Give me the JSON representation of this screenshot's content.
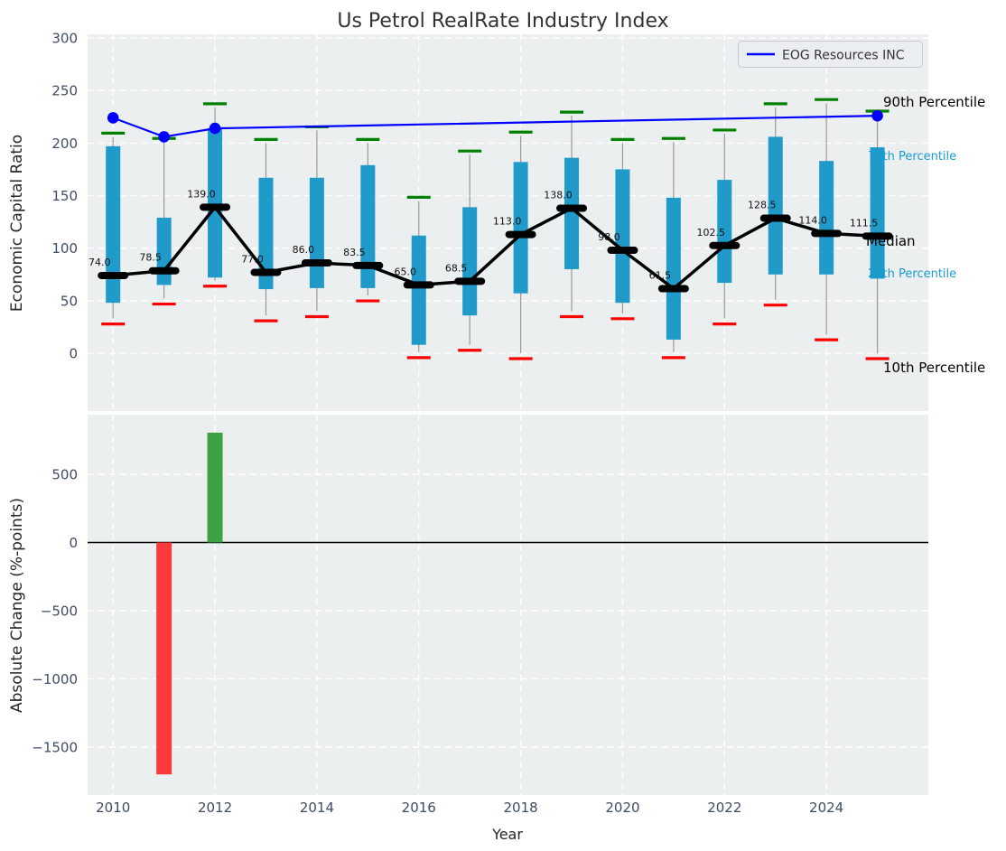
{
  "title": "Us Petrol RealRate Industry Index",
  "colors": {
    "axes_bg": "#ebeff0",
    "grid": "#ffffff",
    "box_fill": "#1f9ac9",
    "whisker": "#999999",
    "p90_cap": "#008000",
    "p10_cap": "#ff0000",
    "median": "#000000",
    "eog_line": "#0000ff",
    "bar_up": "#3ea144",
    "bar_down": "#fb3b3b",
    "tick_label": "#3e4d63",
    "axis_label": "#262626",
    "title_color": "#333333"
  },
  "chart_data": [
    {
      "type": "boxplot+line",
      "panel": "top",
      "title": "Us Petrol RealRate Industry Index",
      "ylabel": "Economic Capital Ratio",
      "ylim": [
        -55,
        303.5
      ],
      "yticks": [
        {
          "v": 0,
          "label": "0"
        },
        {
          "v": 50,
          "label": "50"
        },
        {
          "v": 100,
          "label": "100"
        },
        {
          "v": 150,
          "label": "150"
        },
        {
          "v": 200,
          "label": "200"
        },
        {
          "v": 250,
          "label": "250"
        },
        {
          "v": 300,
          "label": "300"
        }
      ],
      "grid": true,
      "legend": {
        "label": "EOG Resources INC",
        "position": "upper right"
      },
      "boxes": [
        {
          "year": 2010,
          "p10": 33,
          "q1": 48,
          "median": 74.0,
          "q3": 197,
          "p90": 206,
          "label": "74.0"
        },
        {
          "year": 2011,
          "p10": 52,
          "q1": 65,
          "median": 78.5,
          "q3": 129,
          "p90": 201,
          "label": "78.5"
        },
        {
          "year": 2012,
          "p10": 69,
          "q1": 72,
          "median": 139.0,
          "q3": 214,
          "p90": 234,
          "label": "139.0"
        },
        {
          "year": 2013,
          "p10": 36,
          "q1": 61,
          "median": 77.0,
          "q3": 167,
          "p90": 200,
          "label": "77.0"
        },
        {
          "year": 2014,
          "p10": 40,
          "q1": 62,
          "median": 86.0,
          "q3": 167,
          "p90": 212,
          "label": "86.0"
        },
        {
          "year": 2015,
          "p10": 55,
          "q1": 62,
          "median": 83.5,
          "q3": 179,
          "p90": 200,
          "label": "83.5"
        },
        {
          "year": 2016,
          "p10": 1,
          "q1": 8,
          "median": 65.0,
          "q3": 112,
          "p90": 145,
          "label": "65.0"
        },
        {
          "year": 2017,
          "p10": 8,
          "q1": 36,
          "median": 68.5,
          "q3": 139,
          "p90": 189,
          "label": "68.5"
        },
        {
          "year": 2018,
          "p10": 0,
          "q1": 57,
          "median": 113.0,
          "q3": 182,
          "p90": 207,
          "label": "113.0"
        },
        {
          "year": 2019,
          "p10": 40,
          "q1": 80,
          "median": 138.0,
          "q3": 186,
          "p90": 226,
          "label": "138.0"
        },
        {
          "year": 2020,
          "p10": 38,
          "q1": 48,
          "median": 98.0,
          "q3": 175,
          "p90": 200,
          "label": "98.0"
        },
        {
          "year": 2021,
          "p10": 1,
          "q1": 13,
          "median": 61.5,
          "q3": 148,
          "p90": 201,
          "label": "61.5"
        },
        {
          "year": 2022,
          "p10": 33,
          "q1": 67,
          "median": 102.5,
          "q3": 165,
          "p90": 209,
          "label": "102.5"
        },
        {
          "year": 2023,
          "p10": 51,
          "q1": 75,
          "median": 128.5,
          "q3": 206,
          "p90": 234,
          "label": "128.5"
        },
        {
          "year": 2024,
          "p10": 18,
          "q1": 75,
          "median": 114.0,
          "q3": 183,
          "p90": 238,
          "label": "114.0"
        },
        {
          "year": 2025,
          "p10": 0,
          "q1": 71,
          "median": 111.5,
          "q3": 196,
          "p90": 227,
          "label": "111.5"
        }
      ],
      "series": [
        {
          "name": "EOG Resources INC",
          "x": [
            2010,
            2011,
            2012,
            2025
          ],
          "y": [
            224,
            206,
            214,
            226
          ]
        }
      ],
      "annotations": [
        {
          "text": "90th Percentile",
          "color": "#000000"
        },
        {
          "text": "75th Percentile",
          "color": "#1a9cd4"
        },
        {
          "text": "Median",
          "color": "#000000"
        },
        {
          "text": "25th Percentile",
          "color": "#1a9cd4"
        },
        {
          "text": "10th Percentile",
          "color": "#000000"
        }
      ]
    },
    {
      "type": "bar",
      "panel": "bottom",
      "ylabel": "Absolute Change (%-points)",
      "xlabel": "Year",
      "ylim": [
        -1851,
        937
      ],
      "xlim": [
        2009.5,
        2026
      ],
      "yticks": [
        {
          "v": 500,
          "label": "500"
        },
        {
          "v": 0,
          "label": "0"
        },
        {
          "v": -500,
          "label": "−500"
        },
        {
          "v": -1000,
          "label": "−1000"
        },
        {
          "v": -1500,
          "label": "−1500"
        }
      ],
      "xticks": [
        {
          "v": 2010,
          "label": "2010"
        },
        {
          "v": 2012,
          "label": "2012"
        },
        {
          "v": 2014,
          "label": "2014"
        },
        {
          "v": 2016,
          "label": "2016"
        },
        {
          "v": 2018,
          "label": "2018"
        },
        {
          "v": 2020,
          "label": "2020"
        },
        {
          "v": 2022,
          "label": "2022"
        },
        {
          "v": 2024,
          "label": "2024"
        }
      ],
      "bars": [
        {
          "year": 2011,
          "value": -1700,
          "direction": "down"
        },
        {
          "year": 2012,
          "value": 805,
          "direction": "up"
        }
      ],
      "zero_line": true
    }
  ]
}
